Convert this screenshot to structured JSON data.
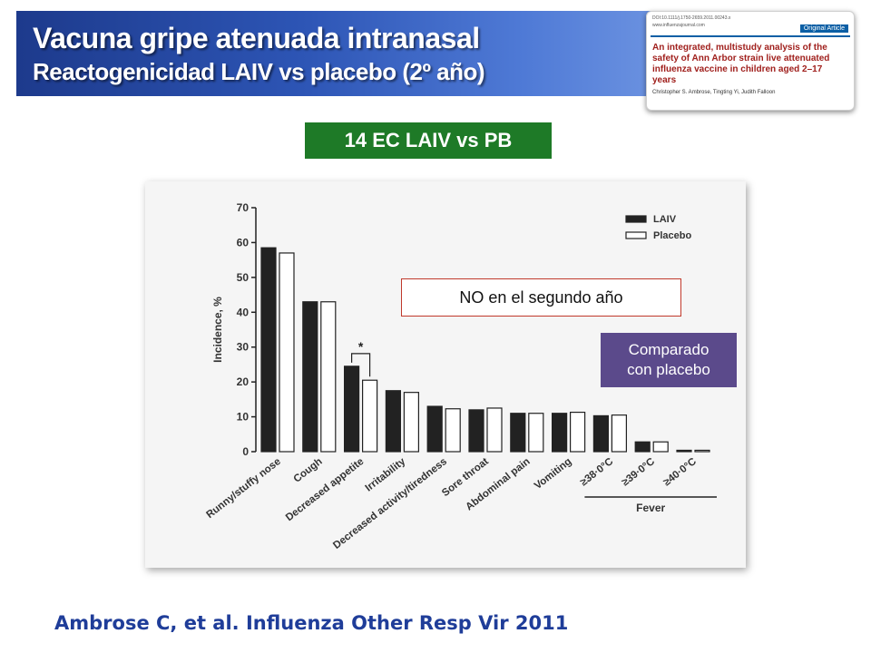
{
  "header": {
    "title_line1": "Vacuna gripe atenuada intranasal",
    "title_line2": "Reactogenicidad LAIV vs placebo (2º año)"
  },
  "paper": {
    "doi": "DOI:10.1111/j.1750-2659.2011.00243.x",
    "url": "www.influenzajournal.com",
    "type": "Original Article",
    "title": "An integrated, multistudy analysis of the safety of Ann Arbor strain live attenuated influenza vaccine in children aged 2–17 years",
    "authors": "Christopher S. Ambrose, Tingting Yi, Judith Falloon"
  },
  "banner": {
    "label": "14 EC LAIV vs PB"
  },
  "callouts": {
    "second_year": "NO en el segundo año",
    "compared_line1": "Comparado",
    "compared_line2": "con placebo"
  },
  "citation": "Ambrose C, et al. Influenza Other Resp Vir 2011",
  "colors": {
    "laiv": "#222222",
    "placebo": "#ffffff",
    "title_band": "#2d55b5",
    "banner": "#1e7a27",
    "callout_purple": "#5b4a8b"
  },
  "chart_data": {
    "type": "bar",
    "ylabel": "Incidence, %",
    "ylim": [
      0,
      70
    ],
    "yticks": [
      0,
      10,
      20,
      30,
      40,
      50,
      60,
      70
    ],
    "categories": [
      "Runny/stuffy nose",
      "Cough",
      "Decreased appetite",
      "Irritability",
      "Decreased activity/tiredness",
      "Sore throat",
      "Abdominal pain",
      "Vomiting",
      "≥38·0°C",
      "≥39·0°C",
      "≥40·0°C"
    ],
    "series": [
      {
        "name": "LAIV",
        "values": [
          58.5,
          43,
          24.5,
          17.5,
          13,
          12,
          11,
          11,
          10.3,
          2.8,
          0.4
        ]
      },
      {
        "name": "Placebo",
        "values": [
          57,
          43,
          20.5,
          17,
          12.3,
          12.5,
          11,
          11.3,
          10.5,
          2.8,
          0.4
        ]
      }
    ],
    "significance": {
      "category": "Decreased appetite",
      "marker": "*"
    },
    "group_label": {
      "text": "Fever",
      "categories": [
        "≥38·0°C",
        "≥39·0°C",
        "≥40·0°C"
      ]
    },
    "legend": "top-right",
    "grid": false
  }
}
